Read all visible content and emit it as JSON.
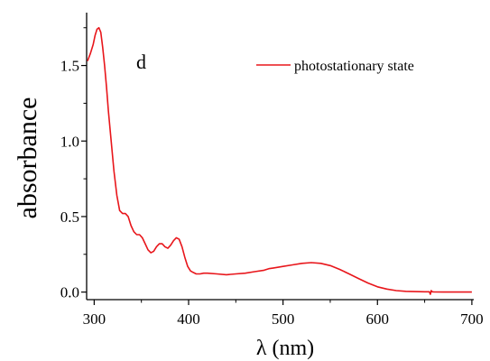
{
  "chart_data": {
    "type": "line",
    "panel_label": "d",
    "xlabel": "λ (nm)",
    "ylabel": "absorbance",
    "xlim": [
      292,
      702
    ],
    "ylim": [
      -0.05,
      1.85
    ],
    "xticks": [
      300,
      400,
      500,
      600,
      700
    ],
    "yticks": [
      0.0,
      0.5,
      1.0,
      1.5
    ],
    "xtick_labels": [
      "300",
      "400",
      "500",
      "600",
      "700"
    ],
    "ytick_labels": [
      "0.0",
      "0.5",
      "1.0",
      "1.5"
    ],
    "grid": false,
    "legend_position": "top-right",
    "series": [
      {
        "name": "photostationary state",
        "color": "#e8161b",
        "x": [
          293,
          296,
          299,
          301,
          303,
          305,
          307,
          309,
          311,
          313,
          315,
          318,
          321,
          324,
          327,
          330,
          333,
          336,
          339,
          342,
          345,
          348,
          351,
          354,
          357,
          360,
          363,
          366,
          369,
          372,
          375,
          378,
          381,
          384,
          387,
          390,
          393,
          396,
          399,
          402,
          405,
          408,
          412,
          416,
          420,
          430,
          440,
          450,
          460,
          470,
          480,
          485,
          490,
          500,
          510,
          520,
          530,
          540,
          550,
          560,
          570,
          580,
          590,
          600,
          610,
          620,
          630,
          640,
          650,
          655,
          656,
          657,
          658,
          660,
          670,
          680,
          690,
          700
        ],
        "y": [
          1.53,
          1.58,
          1.64,
          1.7,
          1.74,
          1.75,
          1.72,
          1.62,
          1.5,
          1.36,
          1.2,
          1.0,
          0.8,
          0.64,
          0.54,
          0.52,
          0.52,
          0.5,
          0.44,
          0.4,
          0.38,
          0.38,
          0.36,
          0.32,
          0.28,
          0.26,
          0.27,
          0.3,
          0.32,
          0.32,
          0.3,
          0.29,
          0.31,
          0.34,
          0.36,
          0.35,
          0.3,
          0.23,
          0.17,
          0.14,
          0.13,
          0.12,
          0.12,
          0.125,
          0.125,
          0.12,
          0.115,
          0.12,
          0.125,
          0.135,
          0.145,
          0.155,
          0.16,
          0.17,
          0.18,
          0.19,
          0.195,
          0.19,
          0.175,
          0.15,
          0.12,
          0.09,
          0.06,
          0.035,
          0.02,
          0.01,
          0.005,
          0.003,
          0.002,
          0.002,
          -0.015,
          0.01,
          0.002,
          0.001,
          0.0,
          0.0,
          0.0,
          0.0
        ]
      }
    ]
  }
}
